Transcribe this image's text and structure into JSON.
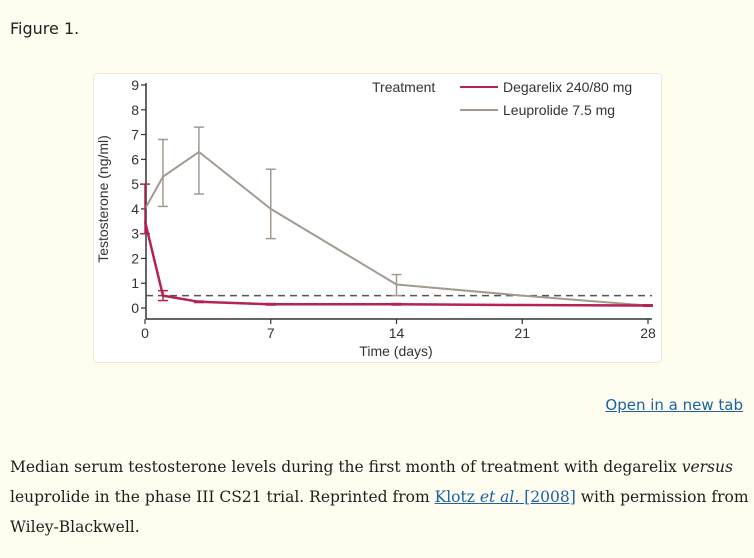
{
  "figure_label": "Figure 1.",
  "open_link": "Open in a new tab",
  "caption": {
    "part1": "Median serum testosterone levels during the first month of treatment with degarelix ",
    "italic1": "versus",
    "part2": " leuprolide in the phase III CS21 trial. Reprinted from ",
    "link_author": "Klotz ",
    "link_etal": "et al.",
    "link_year": " [2008]",
    "part3": " with permission from Wiley-Blackwell."
  },
  "colors": {
    "degarelix": "#b5234f",
    "leuprolide": "#a39a8f",
    "threshold": "#555555",
    "link": "#1a61a5"
  },
  "chart_data": {
    "type": "line",
    "title": "",
    "xlabel": "Time (days)",
    "ylabel": "Testosterone (ng/ml)",
    "xlim": [
      0,
      28
    ],
    "ylim": [
      0,
      9
    ],
    "x_ticks": [
      0,
      7,
      14,
      21,
      28
    ],
    "y_ticks": [
      0,
      1,
      2,
      3,
      4,
      5,
      6,
      7,
      8,
      9
    ],
    "grid": false,
    "legend": {
      "title": "Treatment",
      "placement": "top-right",
      "entries": [
        "Degarelix 240/80 mg",
        "Leuprolide 7.5 mg"
      ]
    },
    "reference_line": {
      "y": 0.5,
      "style": "dashed"
    },
    "series": [
      {
        "name": "Leuprolide 7.5 mg",
        "color_key": "leuprolide",
        "points": [
          {
            "x": 0,
            "y": 4.0
          },
          {
            "x": 1,
            "y": 5.3,
            "lo": 4.1,
            "hi": 6.8
          },
          {
            "x": 3,
            "y": 6.3,
            "lo": 4.6,
            "hi": 7.3
          },
          {
            "x": 7,
            "y": 4.0,
            "lo": 2.8,
            "hi": 5.6
          },
          {
            "x": 14,
            "y": 0.95,
            "lo": 0.5,
            "hi": 1.35
          },
          {
            "x": 21,
            "y": 0.5
          },
          {
            "x": 28,
            "y": 0.1
          }
        ]
      },
      {
        "name": "Degarelix 240/80 mg",
        "color_key": "degarelix",
        "points": [
          {
            "x": 0,
            "y": 3.5,
            "lo": 3.0,
            "hi": 5.0
          },
          {
            "x": 1,
            "y": 0.5,
            "lo": 0.3,
            "hi": 0.7
          },
          {
            "x": 3,
            "y": 0.25,
            "lo": 0.22,
            "hi": 0.28
          },
          {
            "x": 7,
            "y": 0.15,
            "lo": 0.12,
            "hi": 0.18
          },
          {
            "x": 14,
            "y": 0.15,
            "lo": 0.12,
            "hi": 0.18
          },
          {
            "x": 21,
            "y": 0.12
          },
          {
            "x": 28,
            "y": 0.1,
            "lo": 0.07,
            "hi": 0.13
          }
        ]
      }
    ]
  }
}
